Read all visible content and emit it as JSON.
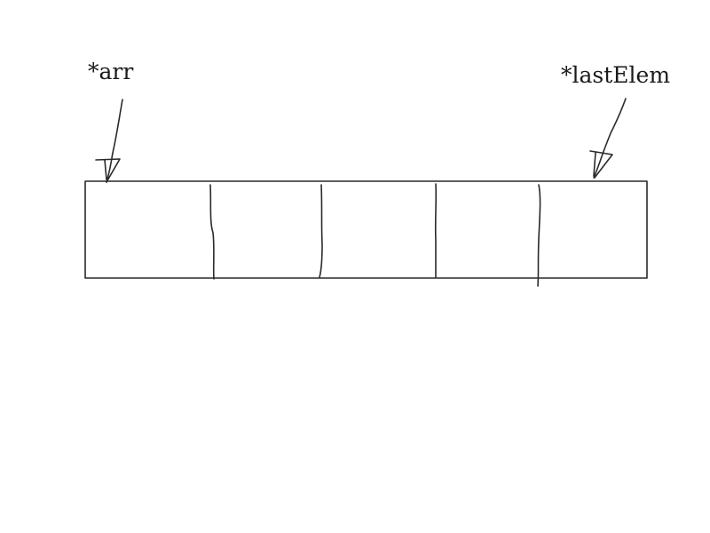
{
  "labels": {
    "first_pointer": "*arr",
    "last_pointer": "*lastElem"
  },
  "array": {
    "cell_count": 5
  },
  "colors": {
    "ink": "#2a2a2a",
    "background": "#ffffff"
  }
}
